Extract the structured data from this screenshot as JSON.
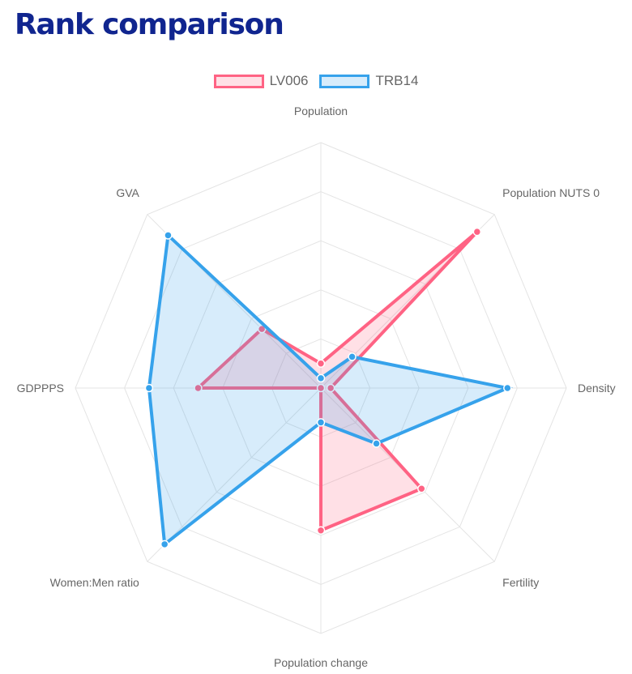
{
  "page": {
    "title": "Rank comparison"
  },
  "chart_data": {
    "type": "radar",
    "axes": [
      "Population",
      "Population NUTS 0",
      "Density",
      "Fertility",
      "Population change",
      "Women:Men ratio",
      "GDPPPS",
      "GVA"
    ],
    "rmax": 5,
    "grid": true,
    "legend_position": "top",
    "series": [
      {
        "name": "LV006",
        "values": [
          0.5,
          4.5,
          0.2,
          2.9,
          2.9,
          0,
          2.5,
          1.7
        ],
        "color": "#ff6384",
        "fill": "rgba(255,99,132,0.2)"
      },
      {
        "name": "TRB14",
        "values": [
          0.2,
          0.9,
          3.8,
          1.6,
          0.7,
          4.5,
          3.5,
          4.4
        ],
        "color": "#36a2eb",
        "fill": "rgba(54,162,235,0.2)"
      }
    ]
  }
}
